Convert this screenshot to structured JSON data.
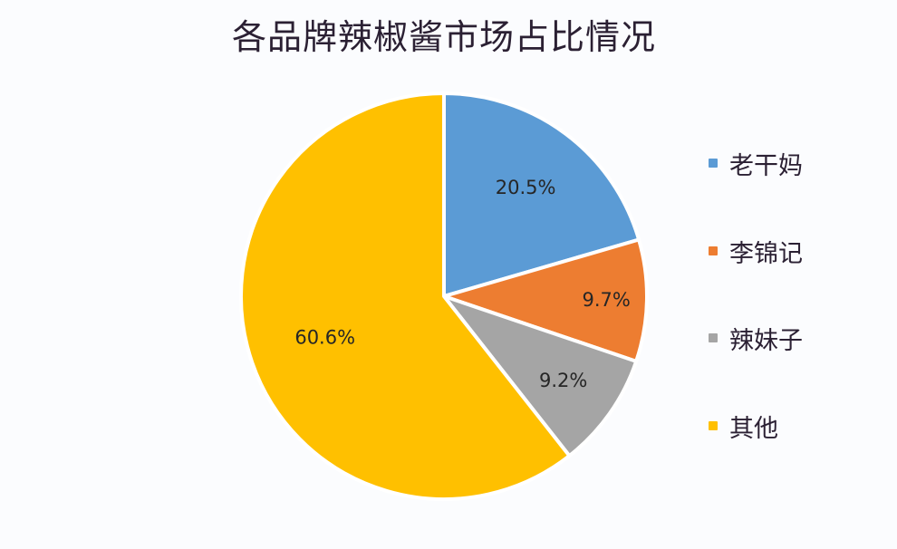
{
  "title": "各品牌辣椒酱市场占比情况",
  "colors": {
    "laoganma": "#5b9bd5",
    "lijinji": "#ed7d31",
    "lameizi": "#a5a5a5",
    "other": "#ffc000",
    "background": "#fbfcfe",
    "text": "#2b2033"
  },
  "legend": {
    "items": [
      {
        "label": "老干妈",
        "color": "#5b9bd5"
      },
      {
        "label": "李锦记",
        "color": "#ed7d31"
      },
      {
        "label": "辣妹子",
        "color": "#a5a5a5"
      },
      {
        "label": "其他",
        "color": "#ffc000"
      }
    ]
  },
  "labels": [
    "20.5%",
    "9.7%",
    "9.2%",
    "60.6%"
  ],
  "chart_data": {
    "type": "pie",
    "title": "各品牌辣椒酱市场占比情况",
    "categories": [
      "老干妈",
      "李锦记",
      "辣妹子",
      "其他"
    ],
    "values": [
      20.5,
      9.7,
      9.2,
      60.6
    ],
    "unit": "%",
    "data_labels": [
      "20.5%",
      "9.7%",
      "9.2%",
      "60.6%"
    ],
    "start_angle": "12 o'clock, clockwise",
    "legend_position": "right",
    "colors": [
      "#5b9bd5",
      "#ed7d31",
      "#a5a5a5",
      "#ffc000"
    ]
  }
}
